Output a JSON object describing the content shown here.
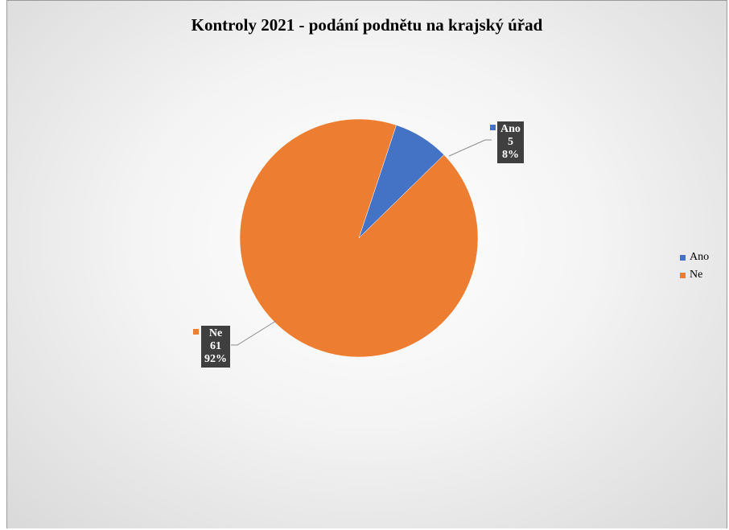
{
  "chart_data": {
    "type": "pie",
    "title": "Kontroly 2021 - podání podnětu na krajský úřad",
    "categories": [
      "Ano",
      "Ne"
    ],
    "values": [
      5,
      61
    ],
    "percentages": [
      "8%",
      "92%"
    ],
    "colors": [
      "#4472C4",
      "#ED7D31"
    ],
    "legend_position": "right"
  },
  "labels": {
    "ano": {
      "name": "Ano",
      "value": "5",
      "percent": "8%"
    },
    "ne": {
      "name": "Ne",
      "value": "61",
      "percent": "92%"
    }
  },
  "legend": {
    "items": [
      {
        "label": "Ano",
        "color": "#4472C4"
      },
      {
        "label": "Ne",
        "color": "#ED7D31"
      }
    ]
  }
}
